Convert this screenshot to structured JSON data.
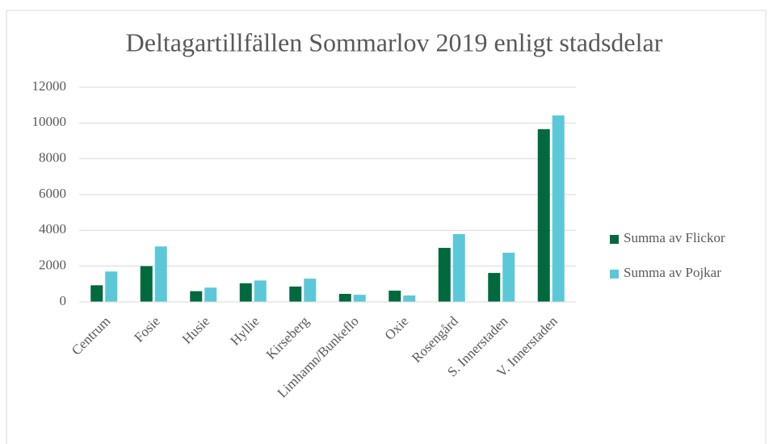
{
  "chart_data": {
    "type": "bar",
    "title": "Deltagartillfällen Sommarlov 2019 enligt stadsdelar",
    "categories": [
      "Centrum",
      "Fosie",
      "Husie",
      "Hyllie",
      "Kirseberg",
      "Limhamn/Bunkeflo",
      "Oxie",
      "Rosengård",
      "S. Innerstaden",
      "V. Innerstaden"
    ],
    "series": [
      {
        "name": "Summa av Flickor",
        "color": "#00693e",
        "values": [
          930,
          2000,
          600,
          1040,
          860,
          450,
          630,
          3020,
          1620,
          9650
        ]
      },
      {
        "name": "Summa av Pojkar",
        "color": "#5bc8d8",
        "values": [
          1700,
          3100,
          800,
          1200,
          1300,
          400,
          360,
          3790,
          2750,
          10420
        ]
      }
    ],
    "ylim": [
      0,
      12000
    ],
    "yticks": [
      0,
      2000,
      4000,
      6000,
      8000,
      10000,
      12000
    ],
    "grid": true,
    "legend": "right"
  }
}
